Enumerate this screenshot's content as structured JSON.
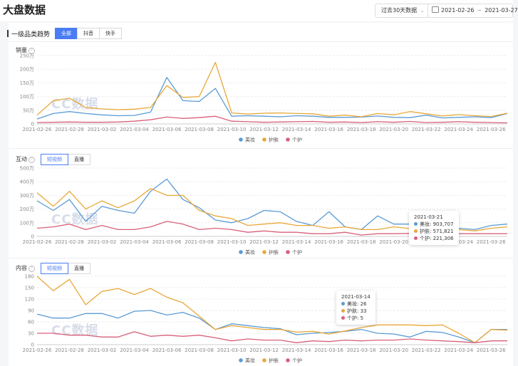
{
  "page": {
    "title": "大盘数据"
  },
  "filters": {
    "range_label": "过去30天数据",
    "date_start": "2021-02-26",
    "date_sep": "~",
    "date_end": "2021-03-27"
  },
  "section": {
    "title": "一级品类趋势",
    "platform_tabs": [
      "全部",
      "抖音",
      "快手"
    ],
    "active_tab": "全部"
  },
  "watermark": "CC数据",
  "colors": {
    "美妆": "#5b9bd5",
    "护肤": "#e8a838",
    "个护": "#d9607a",
    "accent": "#4a7cf3"
  },
  "x_ticks": [
    "2021-02-26",
    "2021-02-28",
    "2021-03-02",
    "2021-03-04",
    "2021-03-06",
    "2021-03-08",
    "2021-03-10",
    "2021-03-12",
    "2021-03-14",
    "2021-03-16",
    "2021-03-18",
    "2021-03-20",
    "2021-03-22",
    "2021-03-24",
    "2021-03-26"
  ],
  "charts": [
    {
      "key": "sales",
      "title": "销量",
      "tabs": [],
      "tooltip": null
    },
    {
      "key": "interaction",
      "title": "互动",
      "tabs": [
        "短视频",
        "直播"
      ],
      "active_tab": "短视频",
      "tooltip": {
        "date": "2021-03-21",
        "rows": [
          {
            "series": "美妆",
            "text": "美妆: 903,707"
          },
          {
            "series": "护肤",
            "text": "护肤: 571,821"
          },
          {
            "series": "个护",
            "text": "个护: 221,306"
          }
        ]
      }
    },
    {
      "key": "content",
      "title": "内容",
      "tabs": [
        "短视频",
        "直播"
      ],
      "active_tab": "短视频",
      "tooltip": {
        "date": "2021-03-14",
        "rows": [
          {
            "series": "美妆",
            "text": "美妆: 26"
          },
          {
            "series": "护肤",
            "text": "护肤: 33"
          },
          {
            "series": "个护",
            "text": "个护: 5"
          }
        ]
      }
    }
  ],
  "chart_data": [
    {
      "type": "line",
      "title": "销量",
      "x": [
        "2021-02-26",
        "2021-02-27",
        "2021-02-28",
        "2021-03-01",
        "2021-03-02",
        "2021-03-03",
        "2021-03-04",
        "2021-03-05",
        "2021-03-06",
        "2021-03-07",
        "2021-03-08",
        "2021-03-09",
        "2021-03-10",
        "2021-03-11",
        "2021-03-12",
        "2021-03-13",
        "2021-03-14",
        "2021-03-15",
        "2021-03-16",
        "2021-03-17",
        "2021-03-18",
        "2021-03-19",
        "2021-03-20",
        "2021-03-21",
        "2021-03-22",
        "2021-03-23",
        "2021-03-24",
        "2021-03-25",
        "2021-03-26",
        "2021-03-27"
      ],
      "y_ticks": [
        "0",
        "50万",
        "100万",
        "150万",
        "200万",
        "250万"
      ],
      "ylim": [
        0,
        2500000
      ],
      "legend": [
        "美妆",
        "护肤",
        "个护"
      ],
      "legend_position": "bottom",
      "series": [
        {
          "name": "美妆",
          "values": [
            180000,
            380000,
            450000,
            380000,
            330000,
            300000,
            310000,
            430000,
            1700000,
            850000,
            820000,
            1300000,
            280000,
            300000,
            280000,
            260000,
            300000,
            280000,
            240000,
            240000,
            250000,
            290000,
            240000,
            230000,
            320000,
            220000,
            240000,
            260000,
            230000,
            380000
          ]
        },
        {
          "name": "护肤",
          "values": [
            320000,
            850000,
            940000,
            600000,
            550000,
            520000,
            540000,
            600000,
            1400000,
            970000,
            1000000,
            2250000,
            400000,
            360000,
            390000,
            400000,
            380000,
            370000,
            280000,
            320000,
            260000,
            380000,
            330000,
            450000,
            370000,
            290000,
            340000,
            300000,
            270000,
            390000
          ]
        },
        {
          "name": "个护",
          "values": [
            50000,
            60000,
            70000,
            60000,
            60000,
            70000,
            100000,
            150000,
            250000,
            200000,
            230000,
            280000,
            100000,
            80000,
            60000,
            70000,
            80000,
            90000,
            60000,
            70000,
            50000,
            80000,
            60000,
            90000,
            50000,
            60000,
            80000,
            60000,
            50000,
            40000
          ]
        }
      ]
    },
    {
      "type": "line",
      "title": "互动",
      "x": [
        "2021-02-26",
        "2021-02-27",
        "2021-02-28",
        "2021-03-01",
        "2021-03-02",
        "2021-03-03",
        "2021-03-04",
        "2021-03-05",
        "2021-03-06",
        "2021-03-07",
        "2021-03-08",
        "2021-03-09",
        "2021-03-10",
        "2021-03-11",
        "2021-03-12",
        "2021-03-13",
        "2021-03-14",
        "2021-03-15",
        "2021-03-16",
        "2021-03-17",
        "2021-03-18",
        "2021-03-19",
        "2021-03-20",
        "2021-03-21",
        "2021-03-22",
        "2021-03-23",
        "2021-03-24",
        "2021-03-25",
        "2021-03-26",
        "2021-03-27"
      ],
      "y_ticks": [
        "0",
        "100万",
        "200万",
        "300万",
        "400万",
        "500万"
      ],
      "ylim": [
        0,
        5000000
      ],
      "legend": [
        "美妆",
        "护肤",
        "个护"
      ],
      "legend_position": "bottom",
      "series": [
        {
          "name": "美妆",
          "values": [
            2600000,
            1900000,
            2700000,
            1100000,
            2200000,
            1900000,
            1700000,
            3300000,
            4200000,
            2700000,
            2100000,
            1200000,
            1000000,
            1300000,
            1900000,
            1800000,
            1100000,
            800000,
            1800000,
            700000,
            500000,
            1500000,
            900000,
            903707,
            800000,
            700000,
            600000,
            500000,
            800000,
            900000
          ]
        },
        {
          "name": "护肤",
          "values": [
            3200000,
            2200000,
            3300000,
            2000000,
            2600000,
            2100000,
            2600000,
            3500000,
            3000000,
            3000000,
            1900000,
            1500000,
            1300000,
            800000,
            900000,
            1000000,
            800000,
            800000,
            600000,
            700000,
            500000,
            500000,
            700000,
            571821,
            500000,
            400000,
            500000,
            400000,
            600000,
            700000
          ]
        },
        {
          "name": "个护",
          "values": [
            600000,
            700000,
            900000,
            500000,
            800000,
            500000,
            500000,
            700000,
            1100000,
            900000,
            500000,
            600000,
            500000,
            300000,
            400000,
            300000,
            300000,
            200000,
            200000,
            300000,
            100000,
            200000,
            200000,
            221306,
            200000,
            200000,
            200000,
            200000,
            200000,
            200000
          ]
        }
      ]
    },
    {
      "type": "line",
      "title": "内容",
      "x": [
        "2021-02-26",
        "2021-02-27",
        "2021-02-28",
        "2021-03-01",
        "2021-03-02",
        "2021-03-03",
        "2021-03-04",
        "2021-03-05",
        "2021-03-06",
        "2021-03-07",
        "2021-03-08",
        "2021-03-09",
        "2021-03-10",
        "2021-03-11",
        "2021-03-12",
        "2021-03-13",
        "2021-03-14",
        "2021-03-15",
        "2021-03-16",
        "2021-03-17",
        "2021-03-18",
        "2021-03-19",
        "2021-03-20",
        "2021-03-21",
        "2021-03-22",
        "2021-03-23",
        "2021-03-24",
        "2021-03-25",
        "2021-03-26",
        "2021-03-27"
      ],
      "y_ticks": [
        "0",
        "30",
        "60",
        "90",
        "120",
        "150",
        "180"
      ],
      "ylim": [
        0,
        180
      ],
      "legend": [
        "美妆",
        "护肤",
        "个护"
      ],
      "legend_position": "bottom",
      "series": [
        {
          "name": "美妆",
          "values": [
            80,
            70,
            70,
            82,
            82,
            70,
            88,
            90,
            78,
            85,
            70,
            40,
            55,
            50,
            45,
            42,
            26,
            30,
            32,
            35,
            40,
            30,
            28,
            20,
            35,
            32,
            20,
            5,
            40,
            40
          ]
        },
        {
          "name": "护肤",
          "values": [
            180,
            142,
            172,
            105,
            140,
            148,
            132,
            148,
            125,
            110,
            75,
            40,
            50,
            45,
            40,
            40,
            33,
            35,
            28,
            36,
            45,
            52,
            52,
            52,
            50,
            52,
            30,
            5,
            40,
            38
          ]
        },
        {
          "name": "个护",
          "values": [
            30,
            30,
            25,
            25,
            20,
            20,
            34,
            22,
            25,
            22,
            25,
            18,
            10,
            15,
            12,
            12,
            5,
            10,
            8,
            12,
            10,
            12,
            12,
            15,
            12,
            10,
            8,
            5,
            10,
            10
          ]
        }
      ]
    }
  ]
}
